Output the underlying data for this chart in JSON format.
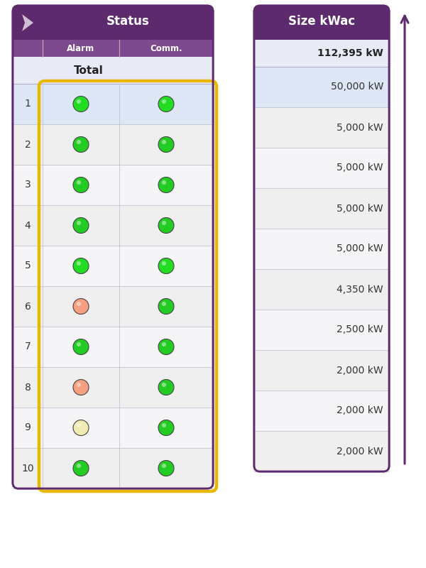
{
  "title_status": "Status",
  "title_alarm": "Alarm",
  "title_comm": "Comm.",
  "title_size": "Size kWac",
  "total_label": "Total",
  "total_size": "112,395 kW",
  "rows": [
    1,
    2,
    3,
    4,
    5,
    6,
    7,
    8,
    9,
    10
  ],
  "sizes": [
    "50,000 kW",
    "5,000 kW",
    "5,000 kW",
    "5,000 kW",
    "5,000 kW",
    "4,350 kW",
    "2,500 kW",
    "2,000 kW",
    "2,000 kW",
    "2,000 kW"
  ],
  "alarm_colors": [
    "#22dd22",
    "#22cc22",
    "#22cc22",
    "#22cc22",
    "#22dd22",
    "#f5a080",
    "#22cc22",
    "#f5a080",
    "#f0ebb0",
    "#22cc22"
  ],
  "comm_colors": [
    "#22dd22",
    "#22cc22",
    "#22cc22",
    "#22cc22",
    "#22dd22",
    "#22cc22",
    "#22cc22",
    "#22cc22",
    "#22cc22",
    "#22cc22"
  ],
  "purple_dark": "#5e2a6e",
  "purple_header": "#6e3a7e",
  "purple_subheader": "#7e4a8e",
  "row_bg_blue": "#dde6f5",
  "row_bg_white": "#efefef",
  "row_bg_white2": "#f5f5f8",
  "yellow_box_color": "#e8b800",
  "bg_color": "#ffffff",
  "green_bright": "#22dd22",
  "green_mid": "#22cc22"
}
